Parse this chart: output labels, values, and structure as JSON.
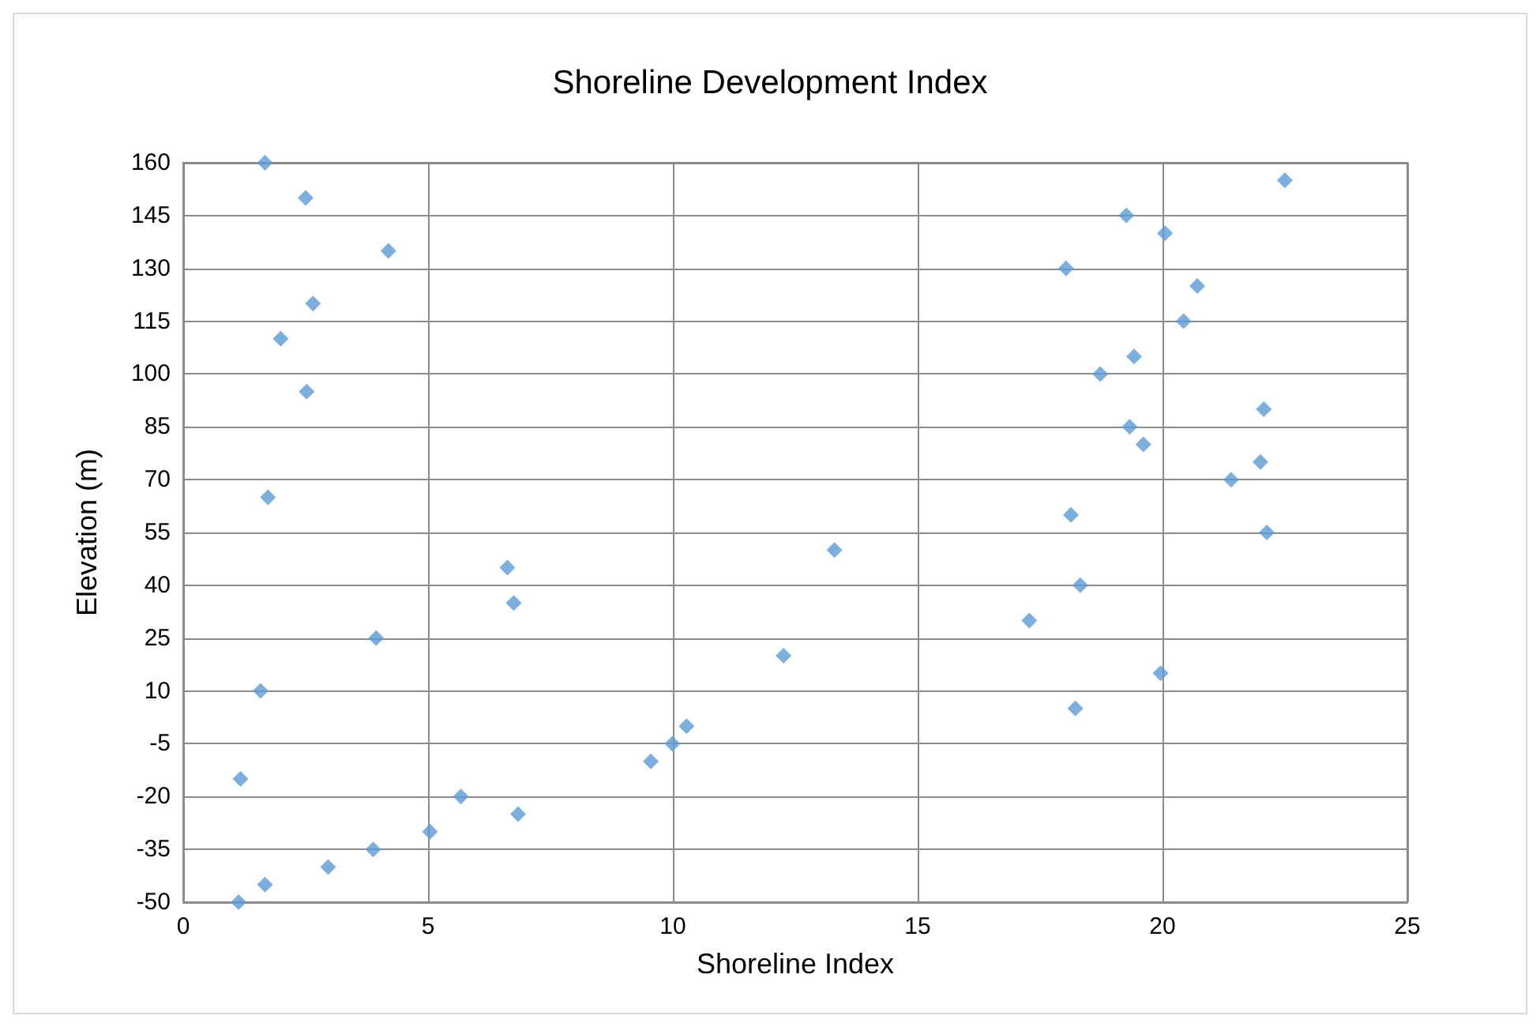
{
  "chart_data": {
    "type": "scatter",
    "title": "Shoreline Development Index",
    "xlabel": "Shoreline Index",
    "ylabel": "Elevation (m)",
    "marker": "diamond",
    "grid": true,
    "xlim": [
      0,
      25
    ],
    "xticks": [
      0,
      5,
      10,
      15,
      20,
      25
    ],
    "ylim": [
      -50,
      160
    ],
    "yticks": [
      -50,
      -35,
      -20,
      -5,
      10,
      25,
      40,
      55,
      70,
      85,
      100,
      115,
      130,
      145,
      160
    ],
    "series": [
      {
        "color": "#5b9bd5",
        "x": [
          1.67,
          2.5,
          4.19,
          2.65,
          1.99,
          2.52,
          1.73,
          6.62,
          6.75,
          3.94,
          1.58,
          13.3,
          12.26,
          10.28,
          9.99,
          9.55,
          1.17,
          5.67,
          6.84,
          5.04,
          3.88,
          2.96,
          1.67,
          1.13,
          22.5,
          19.26,
          20.05,
          18.03,
          20.71,
          20.43,
          19.42,
          18.73,
          22.07,
          19.33,
          19.61,
          22.0,
          21.4,
          18.13,
          22.13,
          18.32,
          17.28,
          19.96,
          18.22
        ],
        "values": [
          160,
          150,
          135,
          120,
          110,
          95,
          65,
          45,
          35,
          25,
          10,
          50,
          20,
          0,
          -5,
          -10,
          -15,
          -20,
          -25,
          -30,
          -35,
          -40,
          -45,
          -50,
          155,
          145,
          140,
          130,
          125,
          115,
          105,
          100,
          90,
          85,
          80,
          75,
          70,
          60,
          55,
          40,
          30,
          15,
          5
        ]
      }
    ]
  }
}
